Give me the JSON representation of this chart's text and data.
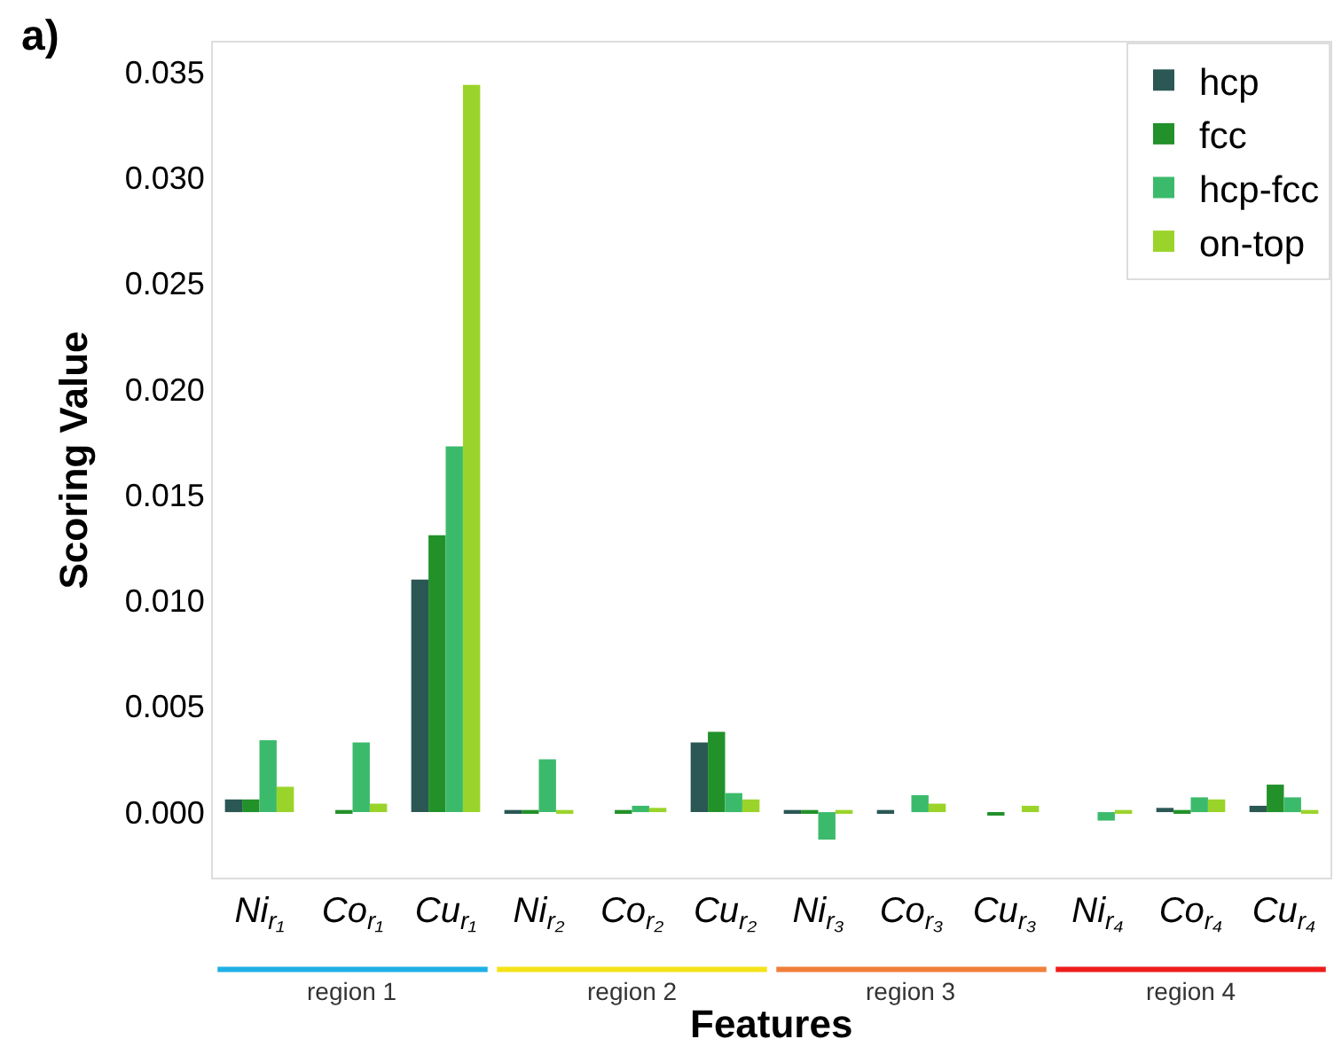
{
  "chart_data": {
    "type": "bar",
    "xlabel": "Features",
    "ylabel": "Scoring Value",
    "categories": [
      "Ni$_{r₁}$",
      "Co$_{r₁}$",
      "Cu$_{r₁}$",
      "Ni$_{r₂}$",
      "Co$_{r₂}$",
      "Cu$_{r₂}$",
      "Ni$_{r₃}$",
      "Co$_{r₃}$",
      "Cu$_{r₃}$",
      "Ni$_{r₄}$",
      "Co$_{r₄}$",
      "Cu$_{r₄}$"
    ],
    "series": [
      {
        "name": "hcp",
        "color": "#2b5755",
        "values": [
          0.0006,
          0.0,
          0.011,
          0.0001,
          0.0,
          0.0033,
          0.0001,
          0.0001,
          0.0,
          0.0,
          0.0002,
          0.0003
        ]
      },
      {
        "name": "fcc",
        "color": "#22912a",
        "values": [
          0.0006,
          0.0001,
          0.0131,
          0.0001,
          0.0001,
          0.0038,
          0.0001,
          0.0,
          -0.0001,
          0.0,
          0.0001,
          0.0013
        ]
      },
      {
        "name": "hcp-fcc",
        "color": "#3cba6c",
        "values": [
          0.0034,
          0.0033,
          0.0173,
          0.0025,
          0.0003,
          0.0009,
          -0.0013,
          0.0008,
          0.0,
          -0.0004,
          0.0007,
          0.0007
        ]
      },
      {
        "name": "on-top",
        "color": "#9ad42a",
        "values": [
          0.0012,
          0.0004,
          0.0344,
          0.0001,
          0.0002,
          0.0006,
          0.0001,
          0.0004,
          0.0003,
          0.0001,
          0.0006,
          0.0001
        ]
      }
    ],
    "ylim": [
      -0.0031,
      0.0364
    ],
    "yticks": [
      {
        "value": 0,
        "label": "0.000"
      },
      {
        "value": 0.005,
        "label": "0.005"
      },
      {
        "value": 0.01,
        "label": "0.010"
      },
      {
        "value": 0.015,
        "label": "0.015"
      },
      {
        "value": 0.02,
        "label": "0.020"
      },
      {
        "value": 0.025,
        "label": "0.025"
      },
      {
        "value": 0.03,
        "label": "0.030"
      },
      {
        "value": 0.035,
        "label": "0.035"
      }
    ],
    "legend": "top right",
    "annotations": [
      "a)",
      "region 1",
      "region 2",
      "region 3",
      "region 4"
    ]
  }
}
